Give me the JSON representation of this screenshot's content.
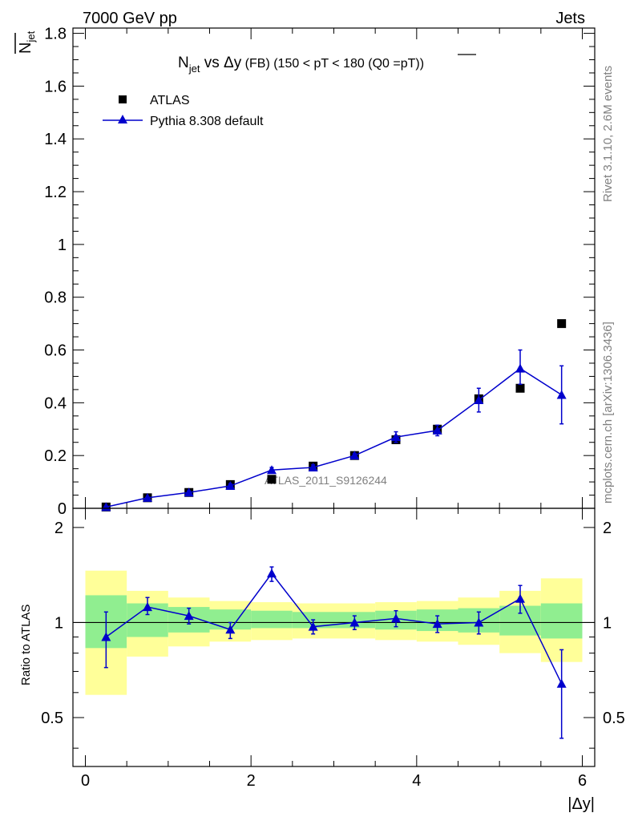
{
  "header": {
    "energy": "7000 GeV pp",
    "process": "Jets"
  },
  "side": {
    "rivet": "Rivet 3.1.10,  2.6M events",
    "mcplots": "mcplots.cern.ch [arXiv:1306.3436]"
  },
  "chart_data": [
    {
      "type": "scatter",
      "title_parts": {
        "n": "N",
        "n_sub": "jet",
        "vs": " vs Δy",
        "fb": " (FB) ",
        "cut": "(150 < pT < 180 (Q0 =",
        "pt_bar": "pT",
        "close": "))"
      },
      "ylabel_n": "N",
      "ylabel_sub": "jet",
      "watermark": "ATLAS_2011_S9126244",
      "legend": {
        "data_label": "ATLAS",
        "mc_label": "Pythia 8.308 default"
      },
      "xlim": [
        -0.15,
        6.15
      ],
      "ylim": [
        0,
        1.82
      ],
      "yticks": [
        0,
        0.2,
        0.4,
        0.6,
        0.8,
        1,
        1.2,
        1.4,
        1.6,
        1.8
      ],
      "ytick_labels": [
        "0",
        "0.2",
        "0.4",
        "0.6",
        "0.8",
        "1",
        "1.2",
        "1.4",
        "1.6",
        "1.8"
      ],
      "x": [
        0.25,
        0.75,
        1.25,
        1.75,
        2.25,
        2.75,
        3.25,
        3.75,
        4.25,
        4.75,
        5.25,
        5.75
      ],
      "series": [
        {
          "name": "ATLAS",
          "color": "#000000",
          "values": [
            0.005,
            0.04,
            0.06,
            0.09,
            0.11,
            0.16,
            0.2,
            0.26,
            0.3,
            0.415,
            0.455,
            0.7
          ]
        },
        {
          "name": "Pythia 8.308 default",
          "color": "#0000cc",
          "values": [
            0.005,
            0.04,
            0.06,
            0.085,
            0.145,
            0.155,
            0.2,
            0.27,
            0.295,
            0.41,
            0.53,
            0.43
          ],
          "err_low": [
            0.002,
            0.004,
            0.006,
            0.008,
            0.01,
            0.01,
            0.008,
            0.02,
            0.02,
            0.045,
            0.06,
            0.11
          ],
          "err_high": [
            0.002,
            0.004,
            0.006,
            0.008,
            0.01,
            0.01,
            0.008,
            0.02,
            0.02,
            0.045,
            0.07,
            0.11
          ]
        }
      ]
    },
    {
      "type": "line",
      "ylabel": "Ratio to ATLAS",
      "xlabel": "|Δy|",
      "xlim": [
        -0.15,
        6.15
      ],
      "ylim": [
        0.35,
        2.3
      ],
      "xticks": [
        0,
        2,
        4,
        6
      ],
      "xtick_labels": [
        "0",
        "2",
        "4",
        "6"
      ],
      "yticks": [
        0.5,
        1,
        2
      ],
      "ytick_labels": [
        "0.5",
        "1",
        "2"
      ],
      "band_edges": [
        0,
        0.5,
        1,
        1.5,
        2,
        2.5,
        3,
        3.5,
        4,
        4.5,
        5,
        5.5,
        6
      ],
      "band_inner": [
        [
          0.83,
          1.22
        ],
        [
          0.9,
          1.15
        ],
        [
          0.93,
          1.12
        ],
        [
          0.95,
          1.1
        ],
        [
          0.96,
          1.09
        ],
        [
          0.96,
          1.08
        ],
        [
          0.96,
          1.08
        ],
        [
          0.95,
          1.09
        ],
        [
          0.94,
          1.1
        ],
        [
          0.93,
          1.11
        ],
        [
          0.91,
          1.13
        ],
        [
          0.89,
          1.15
        ]
      ],
      "band_outer": [
        [
          0.59,
          1.46
        ],
        [
          0.78,
          1.26
        ],
        [
          0.84,
          1.2
        ],
        [
          0.87,
          1.17
        ],
        [
          0.88,
          1.16
        ],
        [
          0.89,
          1.15
        ],
        [
          0.89,
          1.15
        ],
        [
          0.88,
          1.16
        ],
        [
          0.87,
          1.17
        ],
        [
          0.85,
          1.2
        ],
        [
          0.8,
          1.26
        ],
        [
          0.75,
          1.38
        ]
      ],
      "band_colors": {
        "inner": "#90ee90",
        "outer": "#ffff99"
      },
      "x": [
        0.25,
        0.75,
        1.25,
        1.75,
        2.25,
        2.75,
        3.25,
        3.75,
        4.25,
        4.75,
        5.25,
        5.75
      ],
      "values": [
        0.9,
        1.12,
        1.05,
        0.95,
        1.43,
        0.97,
        1.0,
        1.03,
        0.99,
        1.0,
        1.19,
        0.64
      ],
      "err_low": [
        0.18,
        0.06,
        0.06,
        0.06,
        0.08,
        0.05,
        0.05,
        0.06,
        0.06,
        0.08,
        0.12,
        0.21
      ],
      "err_high": [
        0.18,
        0.08,
        0.06,
        0.05,
        0.07,
        0.05,
        0.05,
        0.06,
        0.06,
        0.08,
        0.12,
        0.18
      ],
      "color": "#0000cc"
    }
  ]
}
